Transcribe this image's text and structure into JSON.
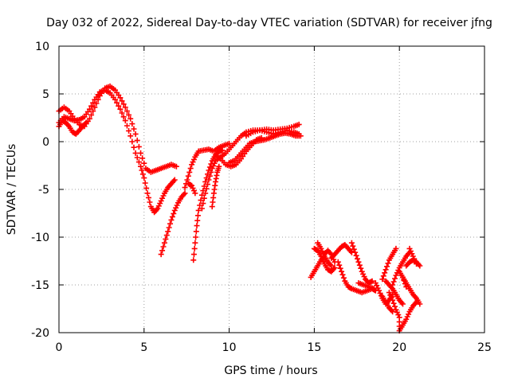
{
  "chart_data": {
    "type": "scatter",
    "title": "Day 032 of 2022, Sidereal Day-to-day VTEC variation (SDTVAR) for receiver jfng",
    "xlabel": "GPS time / hours",
    "ylabel": "SDTVAR / TECUs",
    "xlim": [
      0,
      25
    ],
    "ylim": [
      -20,
      10
    ],
    "xticks": [
      0,
      5,
      10,
      15,
      20,
      25
    ],
    "yticks": [
      -20,
      -15,
      -10,
      -5,
      0,
      5,
      10
    ],
    "xtick_labels": [
      "0",
      "5",
      "10",
      "15",
      "20",
      "25"
    ],
    "ytick_labels": [
      "-20",
      "-15",
      "-10",
      "-5",
      "0",
      "5",
      "10"
    ],
    "grid": true,
    "marker": "plus",
    "color": "#ff0000",
    "tracks": [
      [
        [
          0.0,
          3.2
        ],
        [
          0.3,
          3.6
        ],
        [
          0.6,
          3.2
        ],
        [
          0.9,
          2.4
        ],
        [
          1.2,
          1.8
        ],
        [
          1.5,
          1.6
        ],
        [
          1.8,
          2.4
        ],
        [
          2.1,
          3.6
        ],
        [
          2.4,
          4.8
        ],
        [
          2.7,
          5.6
        ],
        [
          3.0,
          5.8
        ],
        [
          3.3,
          5.4
        ],
        [
          3.6,
          4.6
        ],
        [
          3.9,
          3.6
        ],
        [
          4.2,
          2.4
        ],
        [
          4.5,
          0.8
        ],
        [
          4.8,
          -1.2
        ],
        [
          5.1,
          -2.8
        ],
        [
          5.4,
          -3.2
        ],
        [
          5.7,
          -3.0
        ],
        [
          6.0,
          -2.8
        ],
        [
          6.3,
          -2.6
        ],
        [
          6.6,
          -2.4
        ],
        [
          6.9,
          -2.6
        ]
      ],
      [
        [
          0.0,
          2.0
        ],
        [
          0.3,
          2.6
        ],
        [
          0.6,
          2.4
        ],
        [
          0.9,
          2.2
        ],
        [
          1.2,
          2.3
        ],
        [
          1.5,
          2.6
        ],
        [
          1.8,
          3.4
        ],
        [
          2.1,
          4.4
        ],
        [
          2.4,
          5.2
        ],
        [
          2.7,
          5.4
        ],
        [
          3.0,
          5.1
        ],
        [
          3.3,
          4.4
        ],
        [
          3.6,
          3.4
        ],
        [
          3.9,
          2.2
        ],
        [
          4.2,
          0.6
        ],
        [
          4.5,
          -1.2
        ],
        [
          4.8,
          -2.6
        ],
        [
          5.0,
          -3.8
        ],
        [
          5.2,
          -5.4
        ],
        [
          5.4,
          -6.8
        ],
        [
          5.6,
          -7.4
        ],
        [
          5.8,
          -7.0
        ],
        [
          6.0,
          -6.2
        ],
        [
          6.2,
          -5.4
        ],
        [
          6.4,
          -4.8
        ],
        [
          6.6,
          -4.4
        ],
        [
          6.8,
          -4.0
        ]
      ],
      [
        [
          0.0,
          1.6
        ],
        [
          0.2,
          2.2
        ],
        [
          0.4,
          2.0
        ],
        [
          0.6,
          1.6
        ],
        [
          0.8,
          1.0
        ],
        [
          1.0,
          0.8
        ],
        [
          1.2,
          1.2
        ],
        [
          1.4,
          1.6
        ],
        [
          1.6,
          2.0
        ]
      ],
      [
        [
          6.0,
          -11.8
        ],
        [
          6.2,
          -10.6
        ],
        [
          6.4,
          -9.4
        ],
        [
          6.6,
          -8.2
        ],
        [
          6.8,
          -7.2
        ],
        [
          7.0,
          -6.4
        ],
        [
          7.2,
          -5.8
        ],
        [
          7.4,
          -5.4
        ]
      ],
      [
        [
          7.4,
          -4.8
        ],
        [
          7.6,
          -3.6
        ],
        [
          7.8,
          -2.4
        ],
        [
          8.0,
          -1.6
        ],
        [
          8.2,
          -1.0
        ],
        [
          8.5,
          -0.9
        ],
        [
          8.8,
          -0.8
        ],
        [
          9.1,
          -1.0
        ],
        [
          9.4,
          -0.6
        ],
        [
          9.7,
          -0.4
        ],
        [
          10.0,
          -0.2
        ]
      ],
      [
        [
          7.6,
          -4.4
        ],
        [
          7.8,
          -4.6
        ],
        [
          8.0,
          -5.4
        ]
      ],
      [
        [
          7.9,
          -12.4
        ],
        [
          8.0,
          -10.6
        ],
        [
          8.1,
          -8.8
        ],
        [
          8.2,
          -7.2
        ],
        [
          8.4,
          -5.6
        ],
        [
          8.6,
          -4.2
        ],
        [
          8.8,
          -3.0
        ],
        [
          9.0,
          -2.0
        ],
        [
          9.2,
          -1.4
        ],
        [
          9.4,
          -1.0
        ],
        [
          9.6,
          -0.9
        ]
      ],
      [
        [
          8.4,
          -7.0
        ],
        [
          8.6,
          -5.4
        ],
        [
          8.8,
          -4.0
        ],
        [
          9.0,
          -2.8
        ],
        [
          9.2,
          -2.0
        ],
        [
          9.5,
          -1.6
        ],
        [
          9.8,
          -1.2
        ],
        [
          10.1,
          -0.6
        ],
        [
          10.4,
          0.0
        ],
        [
          10.7,
          0.6
        ],
        [
          11.0,
          1.0
        ],
        [
          11.4,
          1.2
        ],
        [
          11.8,
          1.2
        ],
        [
          12.2,
          1.3
        ],
        [
          12.6,
          1.2
        ],
        [
          13.0,
          1.3
        ],
        [
          13.4,
          1.4
        ],
        [
          13.8,
          1.6
        ],
        [
          14.1,
          1.8
        ]
      ],
      [
        [
          9.0,
          -6.8
        ],
        [
          9.1,
          -5.4
        ],
        [
          9.2,
          -4.2
        ],
        [
          9.3,
          -3.2
        ],
        [
          9.4,
          -2.6
        ]
      ],
      [
        [
          9.2,
          -1.4
        ],
        [
          9.5,
          -1.8
        ],
        [
          9.8,
          -2.4
        ],
        [
          10.1,
          -2.6
        ],
        [
          10.4,
          -2.4
        ],
        [
          10.7,
          -1.8
        ],
        [
          11.0,
          -1.0
        ],
        [
          11.3,
          -0.4
        ],
        [
          11.6,
          0.2
        ],
        [
          11.9,
          0.4
        ]
      ],
      [
        [
          10.0,
          -2.2
        ],
        [
          10.3,
          -2.0
        ],
        [
          10.6,
          -1.4
        ],
        [
          10.9,
          -0.8
        ],
        [
          11.2,
          -0.2
        ],
        [
          11.5,
          0.0
        ],
        [
          11.8,
          0.1
        ],
        [
          12.1,
          0.2
        ],
        [
          12.4,
          0.4
        ],
        [
          12.7,
          0.6
        ],
        [
          13.0,
          0.8
        ],
        [
          13.3,
          0.9
        ],
        [
          13.6,
          0.8
        ],
        [
          13.9,
          0.6
        ],
        [
          14.2,
          0.6
        ]
      ],
      [
        [
          11.0,
          0.6
        ],
        [
          11.4,
          1.0
        ],
        [
          11.8,
          1.2
        ],
        [
          12.2,
          1.0
        ],
        [
          12.6,
          0.8
        ],
        [
          13.0,
          1.0
        ],
        [
          13.4,
          1.2
        ],
        [
          13.8,
          1.0
        ],
        [
          14.1,
          0.8
        ]
      ],
      [
        [
          14.8,
          -14.2
        ],
        [
          15.0,
          -13.6
        ],
        [
          15.2,
          -13.0
        ],
        [
          15.4,
          -12.4
        ],
        [
          15.6,
          -11.8
        ],
        [
          15.8,
          -11.4
        ],
        [
          16.0,
          -11.8
        ],
        [
          16.2,
          -12.6
        ]
      ],
      [
        [
          15.0,
          -11.2
        ],
        [
          15.2,
          -11.4
        ],
        [
          15.4,
          -12.0
        ],
        [
          15.6,
          -12.8
        ],
        [
          15.8,
          -13.4
        ],
        [
          16.0,
          -13.6
        ],
        [
          16.2,
          -13.2
        ]
      ],
      [
        [
          15.2,
          -10.6
        ],
        [
          15.4,
          -11.2
        ],
        [
          15.6,
          -12.0
        ],
        [
          15.8,
          -12.6
        ],
        [
          16.0,
          -13.0
        ]
      ],
      [
        [
          16.0,
          -12.2
        ],
        [
          16.2,
          -11.8
        ],
        [
          16.4,
          -11.4
        ],
        [
          16.6,
          -11.0
        ],
        [
          16.8,
          -10.8
        ],
        [
          17.0,
          -11.2
        ],
        [
          17.2,
          -11.6
        ]
      ],
      [
        [
          16.4,
          -12.6
        ],
        [
          16.6,
          -13.6
        ],
        [
          16.8,
          -14.6
        ],
        [
          17.0,
          -15.2
        ],
        [
          17.2,
          -15.4
        ],
        [
          17.5,
          -15.6
        ],
        [
          17.8,
          -15.8
        ],
        [
          18.1,
          -15.6
        ],
        [
          18.4,
          -15.4
        ],
        [
          18.6,
          -15.6
        ]
      ],
      [
        [
          17.2,
          -10.6
        ],
        [
          17.4,
          -11.6
        ],
        [
          17.6,
          -12.6
        ],
        [
          17.8,
          -13.6
        ],
        [
          18.0,
          -14.4
        ],
        [
          18.2,
          -14.8
        ],
        [
          18.4,
          -14.6
        ]
      ],
      [
        [
          17.6,
          -14.8
        ],
        [
          17.9,
          -15.0
        ],
        [
          18.2,
          -15.2
        ],
        [
          18.5,
          -15.4
        ]
      ],
      [
        [
          18.6,
          -14.8
        ],
        [
          18.8,
          -15.6
        ],
        [
          19.0,
          -16.4
        ],
        [
          19.2,
          -17.0
        ],
        [
          19.4,
          -16.6
        ],
        [
          19.6,
          -16.0
        ]
      ],
      [
        [
          19.0,
          -14.4
        ],
        [
          19.2,
          -13.4
        ],
        [
          19.4,
          -12.4
        ],
        [
          19.6,
          -11.8
        ],
        [
          19.8,
          -11.2
        ]
      ],
      [
        [
          19.2,
          -14.6
        ],
        [
          19.4,
          -15.0
        ],
        [
          19.6,
          -15.4
        ],
        [
          19.8,
          -16.0
        ],
        [
          20.0,
          -16.6
        ],
        [
          20.2,
          -17.0
        ]
      ],
      [
        [
          19.0,
          -16.2
        ],
        [
          19.2,
          -16.8
        ],
        [
          19.4,
          -17.4
        ],
        [
          19.6,
          -17.8
        ]
      ],
      [
        [
          19.4,
          -15.8
        ],
        [
          19.6,
          -16.6
        ],
        [
          19.8,
          -17.6
        ],
        [
          20.0,
          -18.4
        ],
        [
          20.0,
          -19.8
        ],
        [
          20.2,
          -19.2
        ],
        [
          20.4,
          -18.6
        ],
        [
          20.6,
          -17.8
        ],
        [
          20.8,
          -17.2
        ],
        [
          21.0,
          -16.8
        ]
      ],
      [
        [
          19.6,
          -15.0
        ],
        [
          19.8,
          -14.0
        ],
        [
          20.0,
          -13.2
        ],
        [
          20.2,
          -12.6
        ],
        [
          20.4,
          -12.0
        ],
        [
          20.6,
          -11.6
        ]
      ],
      [
        [
          20.2,
          -14.2
        ],
        [
          20.4,
          -14.8
        ],
        [
          20.6,
          -15.4
        ],
        [
          20.8,
          -16.0
        ],
        [
          21.0,
          -16.4
        ],
        [
          21.2,
          -17.0
        ]
      ],
      [
        [
          20.4,
          -13.0
        ],
        [
          20.6,
          -12.6
        ],
        [
          20.8,
          -12.4
        ],
        [
          21.0,
          -12.6
        ],
        [
          21.2,
          -13.0
        ]
      ],
      [
        [
          20.0,
          -13.6
        ],
        [
          20.2,
          -14.2
        ],
        [
          20.4,
          -15.2
        ]
      ],
      [
        [
          20.6,
          -11.2
        ],
        [
          20.8,
          -12.0
        ],
        [
          21.0,
          -12.8
        ]
      ]
    ]
  }
}
